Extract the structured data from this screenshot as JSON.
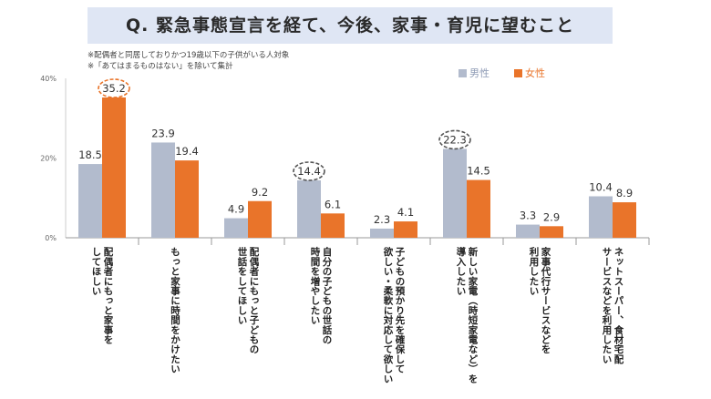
{
  "title": "Q. 緊急事態宣言を経て、今後、家事・育児に望むこと",
  "notes": [
    "※配偶者と同居しておりかつ19歳以下の子供がいる人対象",
    "※「あてはまるものはない」を除いて集計"
  ],
  "chart_data": {
    "type": "bar",
    "categories": [
      "配偶者にもっと家事をしてほしい",
      "もっと家事に時間をかけたい",
      "配偶者にもっと子どもの世話をしてほしい",
      "自分の子どもの世話の時間を増やしたい",
      "子どもの預かり先を確保して欲しい・柔軟に対応して欲しい",
      "新しい家電（時短家電など）を導入したい",
      "家事代行サービスなどを利用したい",
      "ネットスーパー、食材宅配サービスなどを利用したい"
    ],
    "series": [
      {
        "name": "男性",
        "values": [
          18.5,
          23.9,
          4.9,
          14.4,
          2.3,
          22.3,
          3.3,
          10.4
        ]
      },
      {
        "name": "女性",
        "values": [
          35.2,
          19.4,
          9.2,
          6.1,
          4.1,
          14.5,
          2.9,
          8.9
        ]
      }
    ],
    "value_labels": {
      "男性": [
        "18.5",
        "23.9",
        "4.9",
        "14.4",
        "2.3",
        "22.3",
        "3.3",
        "10.4"
      ],
      "女性": [
        "35.2",
        "19.4",
        "9.2",
        "6.1",
        "4.1",
        "14.5",
        "2.9",
        "8.9"
      ]
    },
    "yticks": [
      "0%",
      "20%",
      "40%"
    ],
    "ytick_values": [
      0,
      20,
      40
    ],
    "ylim": [
      0,
      40
    ],
    "highlighted": [
      {
        "series": "女性",
        "index": 0
      },
      {
        "series": "男性",
        "index": 3
      },
      {
        "series": "男性",
        "index": 5
      }
    ],
    "colors": {
      "男性": "#b2bbcd",
      "女性": "#e9742a"
    },
    "legend": "top-right",
    "grid": false
  }
}
